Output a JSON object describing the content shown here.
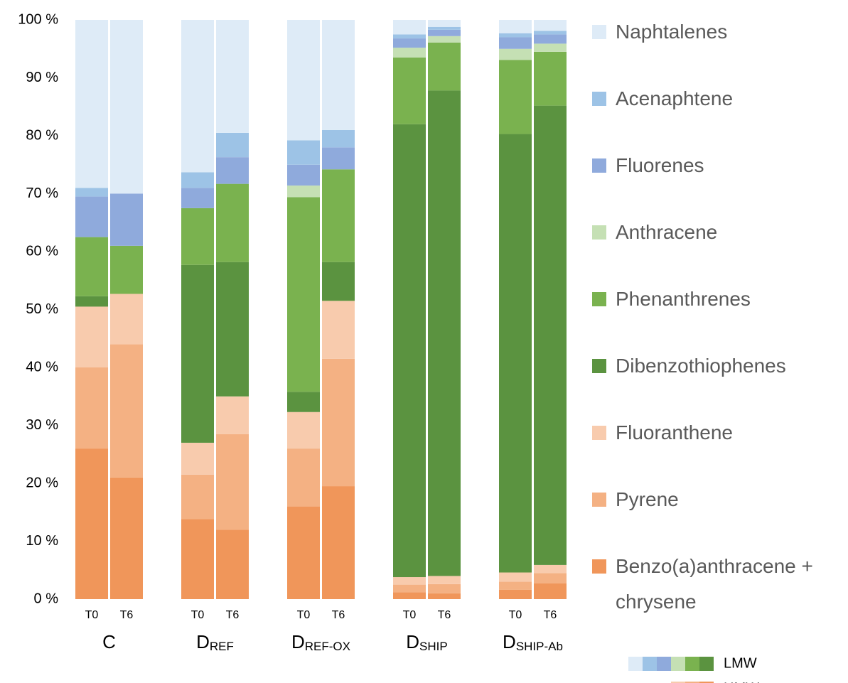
{
  "chart_data": {
    "type": "stacked_bar",
    "categories": [
      "T0",
      "T6",
      "T0",
      "T6",
      "T0",
      "T6",
      "T0",
      "T6",
      "T0",
      "T6"
    ],
    "groups": [
      {
        "label": "C"
      },
      {
        "label": "D",
        "subscript": "REF"
      },
      {
        "label": "D",
        "subscript": "REF-OX"
      },
      {
        "label": "D",
        "subscript": "SHIP"
      },
      {
        "label": "D",
        "subscript": "SHIP-Ab"
      }
    ],
    "series": [
      {
        "name": "Benzo(a)anthracene + chrysene",
        "color": "#f0965a",
        "values": [
          26,
          21,
          13.8,
          12,
          16,
          19.5,
          1.2,
          1,
          1.6,
          2.7
        ]
      },
      {
        "name": "Pyrene",
        "color": "#f4b183",
        "values": [
          14,
          23,
          7.7,
          16.5,
          10,
          22,
          1.3,
          1.6,
          1.4,
          1.8
        ]
      },
      {
        "name": "Fluoranthene",
        "color": "#f8cbad",
        "values": [
          10.5,
          8.7,
          5.5,
          6.5,
          6.3,
          10,
          1.3,
          1.4,
          1.6,
          1.4
        ]
      },
      {
        "name": "Dibenzothiophenes",
        "color": "#5b9340",
        "values": [
          1.8,
          0,
          30.7,
          23.2,
          3.5,
          6.7,
          78.2,
          83.8,
          75.7,
          79.3
        ]
      },
      {
        "name": "Phenanthrenes",
        "color": "#7ab24f",
        "values": [
          10.2,
          8.3,
          9.8,
          13.5,
          33.6,
          16,
          11.5,
          8.3,
          12.8,
          9.3
        ]
      },
      {
        "name": "Anthracene",
        "color": "#c5e0b4",
        "values": [
          0,
          0,
          0,
          0,
          2,
          0,
          1.7,
          1.1,
          1.9,
          1.4
        ]
      },
      {
        "name": "Fluorenes",
        "color": "#8faadc",
        "values": [
          7,
          9,
          3.5,
          4.6,
          3.6,
          3.8,
          1.6,
          1.1,
          2,
          1.6
        ]
      },
      {
        "name": "Acenaphtene",
        "color": "#9dc3e6",
        "values": [
          1.5,
          0,
          2.7,
          4.2,
          4.2,
          3,
          0.7,
          0.5,
          0.7,
          0.6
        ]
      },
      {
        "name": "Naphtalenes",
        "color": "#deebf7",
        "values": [
          29,
          30,
          26.3,
          19.5,
          20.8,
          19,
          2.5,
          1.2,
          2.3,
          1.9
        ]
      }
    ],
    "ylim": [
      0,
      100
    ],
    "yticks": [
      {
        "value": 0,
        "label": "0 %"
      },
      {
        "value": 10,
        "label": "10 %"
      },
      {
        "value": 20,
        "label": "20 %"
      },
      {
        "value": 30,
        "label": "30 %"
      },
      {
        "value": 40,
        "label": "40 %"
      },
      {
        "value": 50,
        "label": "50 %"
      },
      {
        "value": 60,
        "label": "60 %"
      },
      {
        "value": 70,
        "label": "70 %"
      },
      {
        "value": 80,
        "label": "80 %"
      },
      {
        "value": 90,
        "label": "90 %"
      },
      {
        "value": 100,
        "label": "100 %"
      }
    ],
    "series_key": [
      {
        "label": "LMW",
        "series": [
          8,
          7,
          6,
          5,
          4,
          3
        ]
      },
      {
        "label": "HMW",
        "series": [
          2,
          1,
          0
        ]
      }
    ]
  }
}
